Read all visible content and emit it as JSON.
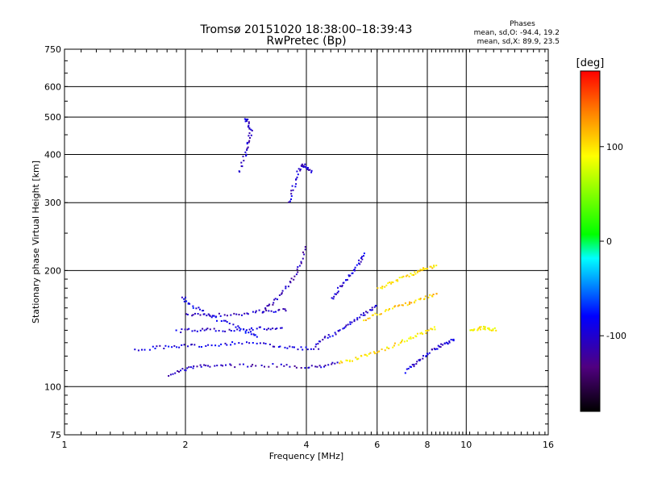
{
  "chart_data": {
    "type": "scatter",
    "title": "Tromsø 20151020 18:38:00–18:39:43",
    "subtitle": "RwPretec (Bp)",
    "xlabel": "Frequency [MHz]",
    "ylabel": "Stationary phase Virtual Height [km]",
    "x_scale": "log2",
    "y_scale": "log",
    "xlim": [
      1,
      16
    ],
    "ylim": [
      75,
      750
    ],
    "x_ticks": [
      1,
      2,
      4,
      6,
      8,
      10,
      16
    ],
    "x_tick_labels": [
      "1",
      "2",
      "4",
      "6",
      "8",
      "10",
      "16"
    ],
    "y_ticks": [
      75,
      100,
      200,
      300,
      400,
      500,
      600,
      750
    ],
    "y_tick_labels": [
      "75",
      "100",
      "200",
      "300",
      "400",
      "500",
      "600",
      "750"
    ],
    "grid": true,
    "stats": {
      "heading": "Phases",
      "line_o": "mean, sd,O: -94.4, 19.2",
      "line_x": "mean, sd,X:  89.9, 23.5"
    },
    "colorbar": {
      "label": "[deg]",
      "range": [
        -180,
        180
      ],
      "ticks": [
        100,
        0,
        -100
      ],
      "tick_labels": [
        "100",
        "0",
        "-100"
      ],
      "placement": "right"
    },
    "traces": [
      {
        "phase": -110,
        "x": [
          1.82,
          1.95,
          2.1,
          2.3,
          2.6,
          3.0,
          3.5,
          4.0,
          4.4,
          4.8
        ],
        "y": [
          108,
          111,
          113,
          114,
          114,
          114,
          114,
          113,
          114,
          116
        ]
      },
      {
        "phase": -95,
        "x": [
          1.5,
          1.7,
          1.9,
          2.1,
          2.4,
          2.7,
          3.1,
          3.5,
          3.9,
          4.3
        ],
        "y": [
          125,
          127,
          128,
          128,
          129,
          131,
          129,
          127,
          126,
          127
        ]
      },
      {
        "phase": -100,
        "x": [
          1.9,
          2.1,
          2.3,
          2.6,
          2.9,
          3.2,
          3.5
        ],
        "y": [
          140,
          141,
          141,
          141,
          142,
          142,
          143
        ]
      },
      {
        "phase": -105,
        "x": [
          2.0,
          2.2,
          2.4,
          2.7,
          3.0,
          3.3,
          3.6
        ],
        "y": [
          154,
          154,
          154,
          155,
          157,
          158,
          159
        ]
      },
      {
        "phase": -90,
        "x": [
          1.95,
          2.05,
          2.2,
          2.4,
          2.65,
          2.85,
          3.05
        ],
        "y": [
          172,
          164,
          157,
          150,
          144,
          139,
          136
        ]
      },
      {
        "phase": -110,
        "x": [
          3.1,
          3.3,
          3.5,
          3.7,
          3.85,
          4.0
        ],
        "y": [
          158,
          166,
          177,
          192,
          210,
          235
        ]
      },
      {
        "phase": -100,
        "x": [
          3.6,
          3.7,
          3.8,
          3.9,
          4.0,
          4.1
        ],
        "y": [
          300,
          330,
          360,
          380,
          370,
          360
        ]
      },
      {
        "phase": -105,
        "x": [
          2.7,
          2.8,
          2.85,
          2.9,
          2.85,
          2.8
        ],
        "y": [
          360,
          400,
          430,
          460,
          490,
          500
        ]
      },
      {
        "phase": -100,
        "x": [
          4.2,
          4.5,
          4.8,
          5.1,
          5.4,
          5.7,
          6.0
        ],
        "y": [
          130,
          135,
          140,
          146,
          152,
          158,
          165
        ]
      },
      {
        "phase": -95,
        "x": [
          4.6,
          4.8,
          5.0,
          5.2,
          5.4,
          5.6
        ],
        "y": [
          170,
          180,
          190,
          200,
          212,
          222
        ]
      },
      {
        "phase": 100,
        "x": [
          4.8,
          5.2,
          5.6,
          6.0,
          6.5,
          7.0,
          7.5,
          8.0,
          8.4
        ],
        "y": [
          116,
          118,
          121,
          124,
          128,
          132,
          136,
          140,
          143
        ]
      },
      {
        "phase": 110,
        "x": [
          5.5,
          6.0,
          6.5,
          7.0,
          7.5,
          8.0,
          8.5
        ],
        "y": [
          150,
          155,
          160,
          164,
          168,
          172,
          176
        ]
      },
      {
        "phase": 100,
        "x": [
          6.0,
          6.4,
          6.8,
          7.2,
          7.6,
          8.0,
          8.4
        ],
        "y": [
          180,
          186,
          192,
          196,
          200,
          204,
          206
        ]
      },
      {
        "phase": -100,
        "x": [
          7.0,
          7.4,
          7.8,
          8.2,
          8.6,
          9.0,
          9.3
        ],
        "y": [
          110,
          115,
          120,
          125,
          128,
          131,
          134
        ]
      },
      {
        "phase": 95,
        "x": [
          10.2,
          10.6,
          11.0,
          11.4,
          11.8
        ],
        "y": [
          141,
          142,
          143,
          142,
          141
        ]
      }
    ]
  }
}
